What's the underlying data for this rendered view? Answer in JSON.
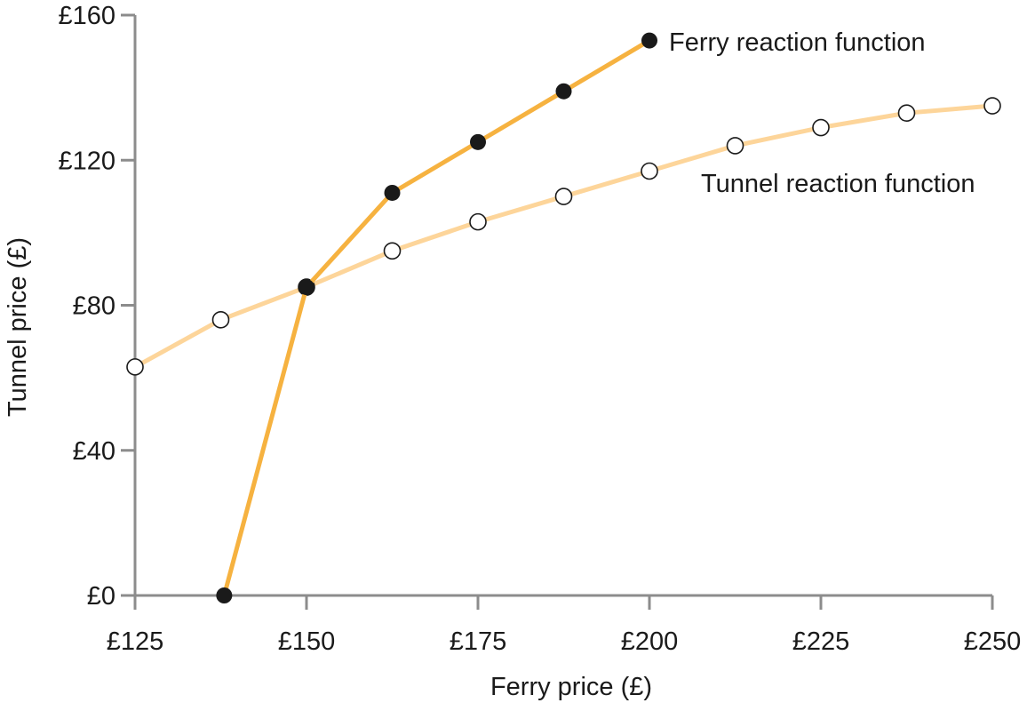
{
  "chart_data": {
    "type": "line",
    "xlabel": "Ferry price (£)",
    "ylabel": "Tunnel price (£)",
    "xlim": [
      125,
      250
    ],
    "ylim": [
      0,
      160
    ],
    "x_ticks": [
      {
        "value": 125,
        "label": "£125"
      },
      {
        "value": 150,
        "label": "£150"
      },
      {
        "value": 175,
        "label": "£175"
      },
      {
        "value": 200,
        "label": "£200"
      },
      {
        "value": 225,
        "label": "£225"
      },
      {
        "value": 250,
        "label": "£250"
      }
    ],
    "y_ticks": [
      {
        "value": 0,
        "label": "£0"
      },
      {
        "value": 40,
        "label": "£40"
      },
      {
        "value": 80,
        "label": "£80"
      },
      {
        "value": 120,
        "label": "£120"
      },
      {
        "value": 160,
        "label": "£160"
      }
    ],
    "series": [
      {
        "name": "Tunnel reaction function",
        "color": "#fdd59a",
        "marker": "open-circle",
        "points": [
          {
            "x": 125,
            "y": 63
          },
          {
            "x": 137.5,
            "y": 76
          },
          {
            "x": 150,
            "y": 85
          },
          {
            "x": 162.5,
            "y": 95
          },
          {
            "x": 175,
            "y": 103
          },
          {
            "x": 187.5,
            "y": 110
          },
          {
            "x": 200,
            "y": 117
          },
          {
            "x": 212.5,
            "y": 124
          },
          {
            "x": 225,
            "y": 129
          },
          {
            "x": 237.5,
            "y": 133
          },
          {
            "x": 250,
            "y": 135
          }
        ]
      },
      {
        "name": "Ferry reaction function",
        "color": "#f6b240",
        "marker": "filled-circle",
        "points": [
          {
            "x": 138,
            "y": 0
          },
          {
            "x": 150,
            "y": 85
          },
          {
            "x": 162.5,
            "y": 111
          },
          {
            "x": 175,
            "y": 125
          },
          {
            "x": 187.5,
            "y": 139
          },
          {
            "x": 200,
            "y": 153
          }
        ]
      }
    ],
    "grid": false
  },
  "colors": {
    "axis": "#8c8c8c",
    "text": "#1a1a1a",
    "marker_edge": "#1a1a1a",
    "marker_fill_open": "#ffffff",
    "marker_fill_solid": "#1a1a1a"
  }
}
